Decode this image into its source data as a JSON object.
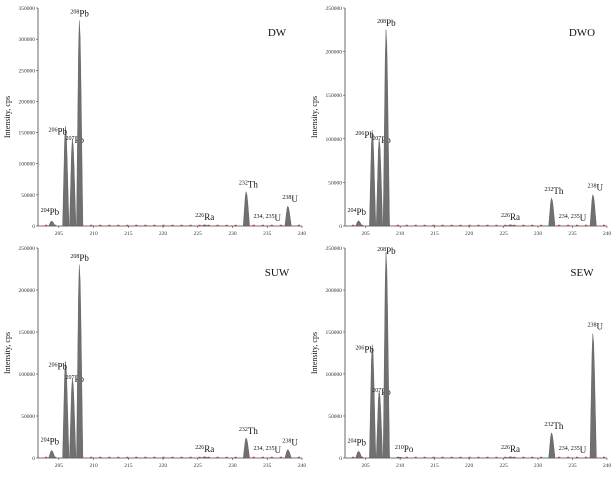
{
  "colors": {
    "peak": "#707070",
    "baseline": "#c0392b",
    "axis": "#444444"
  },
  "chart_data": [
    {
      "type": "bar",
      "title": "DW",
      "ylabel": "Intensity, cps",
      "xlim": [
        202,
        240
      ],
      "xticks": [
        205,
        210,
        215,
        220,
        225,
        230,
        235,
        240
      ],
      "ylim": [
        0,
        350000
      ],
      "yticks": [
        0,
        50000,
        100000,
        150000,
        200000,
        250000,
        300000,
        350000
      ],
      "x": [
        204,
        206,
        207,
        208,
        226,
        232,
        238
      ],
      "values": [
        8000,
        160000,
        140000,
        330000,
        2000,
        55000,
        32000
      ],
      "labels": [
        {
          "iso": "204",
          "el": "Pb"
        },
        {
          "iso": "206",
          "el": "Pb"
        },
        {
          "iso": "207",
          "el": "Pb"
        },
        {
          "iso": "208",
          "el": "Pb"
        },
        {
          "iso": "226",
          "el": "Ra"
        },
        {
          "iso": "232",
          "el": "Th"
        },
        {
          "iso": "238",
          "el": "U"
        }
      ],
      "annotation": {
        "text": "234, 235",
        "el": "U"
      }
    },
    {
      "type": "bar",
      "title": "DWO",
      "ylabel": "Intensity, cps",
      "xlim": [
        202,
        240
      ],
      "xticks": [
        205,
        210,
        215,
        220,
        225,
        230,
        235,
        240
      ],
      "ylim": [
        0,
        250000
      ],
      "yticks": [
        0,
        50000,
        100000,
        150000,
        200000,
        250000
      ],
      "x": [
        204,
        206,
        207,
        208,
        226,
        232,
        238
      ],
      "values": [
        6000,
        110000,
        100000,
        225000,
        1500,
        32000,
        36000
      ],
      "labels": [
        {
          "iso": "204",
          "el": "Pb"
        },
        {
          "iso": "206",
          "el": "Pb"
        },
        {
          "iso": "207",
          "el": "Pb"
        },
        {
          "iso": "208",
          "el": "Pb"
        },
        {
          "iso": "226",
          "el": "Ra"
        },
        {
          "iso": "232",
          "el": "Th"
        },
        {
          "iso": "238",
          "el": "U"
        }
      ],
      "annotation": {
        "text": "234, 235",
        "el": "U"
      }
    },
    {
      "type": "bar",
      "title": "SUW",
      "ylabel": "Intensity, cps",
      "xlim": [
        202,
        240
      ],
      "xticks": [
        205,
        210,
        215,
        220,
        225,
        230,
        235,
        240
      ],
      "ylim": [
        0,
        250000
      ],
      "yticks": [
        0,
        50000,
        100000,
        150000,
        200000,
        250000
      ],
      "x": [
        204,
        206,
        207,
        208,
        226,
        232,
        238
      ],
      "values": [
        9000,
        115000,
        95000,
        230000,
        1500,
        24000,
        10000
      ],
      "labels": [
        {
          "iso": "204",
          "el": "Pb"
        },
        {
          "iso": "206",
          "el": "Pb"
        },
        {
          "iso": "207",
          "el": "Pb"
        },
        {
          "iso": "208",
          "el": "Pb"
        },
        {
          "iso": "226",
          "el": "Ra"
        },
        {
          "iso": "232",
          "el": "Th"
        },
        {
          "iso": "238",
          "el": "U"
        }
      ],
      "annotation": {
        "text": "234, 235",
        "el": "U"
      }
    },
    {
      "type": "bar",
      "title": "SEW",
      "ylabel": "Intensity, cps",
      "xlim": [
        202,
        240
      ],
      "xticks": [
        205,
        210,
        215,
        220,
        225,
        230,
        235,
        240
      ],
      "ylim": [
        0,
        250000
      ],
      "yticks": [
        0,
        50000,
        100000,
        150000,
        200000,
        250000
      ],
      "x": [
        204,
        206,
        207,
        208,
        210,
        226,
        232,
        238
      ],
      "values": [
        8000,
        135000,
        80000,
        245000,
        1000,
        1500,
        30000,
        148000
      ],
      "labels": [
        {
          "iso": "204",
          "el": "Pb"
        },
        {
          "iso": "206",
          "el": "Pb"
        },
        {
          "iso": "207",
          "el": "Pb"
        },
        {
          "iso": "208",
          "el": "Pb"
        },
        {
          "iso": "210",
          "el": "Po"
        },
        {
          "iso": "226",
          "el": "Ra"
        },
        {
          "iso": "232",
          "el": "Th"
        },
        {
          "iso": "238",
          "el": "U"
        }
      ],
      "annotation": {
        "text": "234, 235",
        "el": "U"
      }
    }
  ]
}
